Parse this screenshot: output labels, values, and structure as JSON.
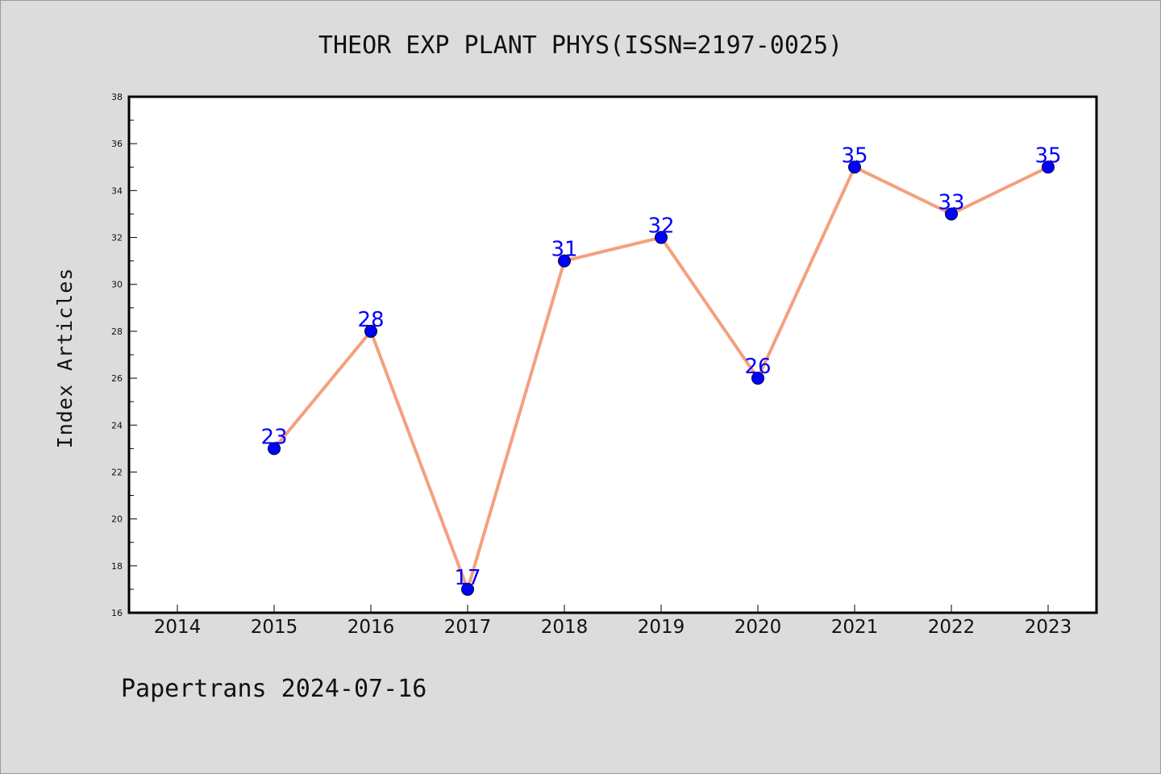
{
  "footer_text": "Papertrans 2024-07-16",
  "colors": {
    "background": "#dcdcdc",
    "plot_background": "#ffffff",
    "line": "#f4a07e",
    "marker": "#0000ff",
    "data_label": "#0000ff"
  },
  "chart_data": {
    "type": "line",
    "title": "THEOR EXP PLANT PHYS(ISSN=2197-0025)",
    "xlabel": "",
    "ylabel": "Index Articles",
    "categories": [
      "2014",
      "2015",
      "2016",
      "2017",
      "2018",
      "2019",
      "2020",
      "2021",
      "2022",
      "2023"
    ],
    "x": [
      2015,
      2016,
      2017,
      2018,
      2019,
      2020,
      2021,
      2022,
      2023
    ],
    "values": [
      23,
      28,
      17,
      31,
      32,
      26,
      35,
      33,
      35
    ],
    "data_labels": [
      "23",
      "28",
      "17",
      "31",
      "32",
      "26",
      "35",
      "33",
      "35"
    ],
    "xlim": [
      2013.5,
      2023.5
    ],
    "ylim": [
      16,
      38
    ],
    "yticks": [
      "16",
      "18",
      "20",
      "22",
      "24",
      "26",
      "28",
      "30",
      "32",
      "34",
      "36",
      "38"
    ],
    "grid": false,
    "legend": "none"
  }
}
